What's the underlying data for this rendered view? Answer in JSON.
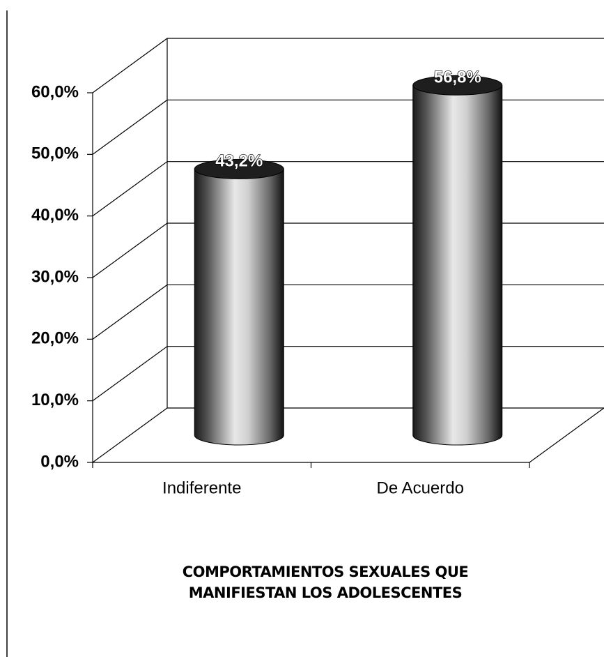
{
  "chart_data": {
    "type": "bar3d_cylinder",
    "xlabel": "COMPORTAMIENTOS SEXUALES QUE MANIFIESTAN LOS ADOLESCENTES",
    "categories": [
      "Indiferente",
      "De Acuerdo"
    ],
    "values": [
      43.2,
      56.8
    ],
    "value_labels": [
      "43,2%",
      "56,8%"
    ],
    "ylim": [
      0,
      60
    ],
    "yticks": [
      {
        "value": 0,
        "label": "0,0%"
      },
      {
        "value": 10,
        "label": "10,0%"
      },
      {
        "value": 20,
        "label": "20,0%"
      },
      {
        "value": 30,
        "label": "30,0%"
      },
      {
        "value": 40,
        "label": "40,0%"
      },
      {
        "value": 50,
        "label": "50,0%"
      },
      {
        "value": 60,
        "label": "60,0%"
      }
    ],
    "grid": true
  }
}
